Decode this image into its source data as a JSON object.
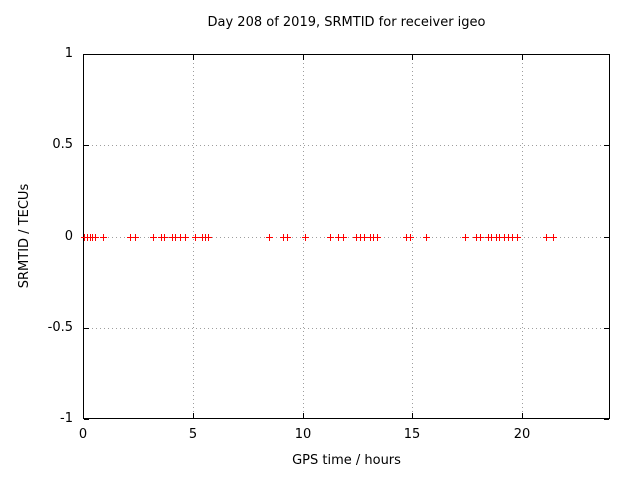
{
  "window": {
    "background": "#ffffff"
  },
  "colors": {
    "marker": "#ff0000",
    "grid": "#9e9e9e",
    "axis": "#000000",
    "text": "#000000"
  },
  "chart_data": {
    "type": "scatter",
    "title": "Day 208 of 2019, SRMTID for receiver igeo",
    "xlabel": "GPS time / hours",
    "ylabel": "SRMTID / TECUs",
    "xlim": [
      0,
      24
    ],
    "ylim": [
      -1,
      1
    ],
    "xticks": [
      0,
      5,
      10,
      15,
      20
    ],
    "yticks": [
      -1,
      -0.5,
      0,
      0.5,
      1
    ],
    "grid": "dotted",
    "legend": "none",
    "series": [
      {
        "name": "",
        "marker": "plus",
        "color": "#ff0000",
        "points": [
          [
            0.05,
            0
          ],
          [
            0.18,
            0
          ],
          [
            0.3,
            0
          ],
          [
            0.42,
            0
          ],
          [
            0.55,
            0
          ],
          [
            0.92,
            0
          ],
          [
            2.15,
            0
          ],
          [
            2.35,
            0
          ],
          [
            3.2,
            0
          ],
          [
            3.55,
            0
          ],
          [
            3.68,
            0
          ],
          [
            4.05,
            0
          ],
          [
            4.2,
            0
          ],
          [
            4.4,
            0
          ],
          [
            4.65,
            0
          ],
          [
            5.1,
            0
          ],
          [
            5.4,
            0
          ],
          [
            5.55,
            0
          ],
          [
            5.7,
            0
          ],
          [
            8.45,
            0
          ],
          [
            9.1,
            0
          ],
          [
            9.3,
            0
          ],
          [
            10.1,
            0
          ],
          [
            11.25,
            0
          ],
          [
            11.6,
            0
          ],
          [
            11.85,
            0
          ],
          [
            12.45,
            0
          ],
          [
            12.62,
            0
          ],
          [
            12.8,
            0
          ],
          [
            13.05,
            0
          ],
          [
            13.2,
            0
          ],
          [
            13.4,
            0
          ],
          [
            14.7,
            0
          ],
          [
            14.9,
            0
          ],
          [
            15.6,
            0
          ],
          [
            17.4,
            0
          ],
          [
            17.9,
            0
          ],
          [
            18.1,
            0
          ],
          [
            18.45,
            0
          ],
          [
            18.6,
            0
          ],
          [
            18.8,
            0
          ],
          [
            18.95,
            0
          ],
          [
            19.15,
            0
          ],
          [
            19.35,
            0
          ],
          [
            19.55,
            0
          ],
          [
            19.75,
            0
          ],
          [
            21.1,
            0
          ],
          [
            21.4,
            0
          ]
        ]
      }
    ]
  }
}
